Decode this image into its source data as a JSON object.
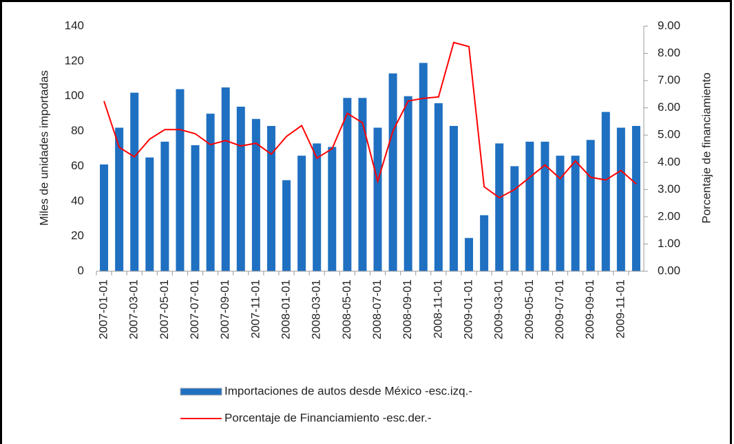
{
  "chart_data": {
    "type": "bar_line",
    "categories": [
      "2007-01-01",
      null,
      "2007-03-01",
      null,
      "2007-05-01",
      null,
      "2007-07-01",
      null,
      "2007-09-01",
      null,
      "2007-11-01",
      null,
      "2008-01-01",
      null,
      "2008-03-01",
      null,
      "2008-05-01",
      null,
      "2008-07-01",
      null,
      "2008-09-01",
      null,
      "2008-11-01",
      null,
      "2009-01-01",
      null,
      "2009-03-01",
      null,
      "2009-05-01",
      null,
      "2009-07-01",
      null,
      "2009-09-01",
      null,
      "2009-11-01",
      null
    ],
    "series": [
      {
        "name": "Importaciones de autos desde México -esc.izq.-",
        "type": "bar",
        "color": "#1f70c1",
        "values": [
          61,
          82,
          102,
          65,
          74,
          104,
          72,
          90,
          105,
          94,
          87,
          83,
          52,
          66,
          73,
          71,
          99,
          99,
          82,
          113,
          100,
          119,
          96,
          83,
          19,
          32,
          73,
          60,
          74,
          74,
          66,
          66,
          75,
          91,
          82,
          83
        ]
      },
      {
        "name": "Porcentaje de Financiamiento -esc.der.-",
        "type": "line",
        "axis": "y2",
        "color": "#ff0000",
        "values": [
          6.25,
          4.55,
          4.2,
          4.85,
          5.2,
          5.2,
          5.05,
          4.65,
          4.8,
          4.6,
          4.7,
          4.3,
          4.95,
          5.35,
          4.15,
          4.5,
          5.8,
          5.45,
          3.3,
          5.15,
          6.25,
          6.35,
          6.4,
          8.4,
          8.25,
          3.1,
          2.7,
          3.0,
          3.45,
          3.9,
          3.4,
          4.05,
          3.45,
          3.35,
          3.7,
          3.2
        ]
      }
    ],
    "ylabel": "Miles de unidades importadas",
    "y2label": "Porcentaje de financiamiento",
    "ylim": [
      0,
      140
    ],
    "yticks": [
      0,
      20,
      40,
      60,
      80,
      100,
      120,
      140
    ],
    "y2lim": [
      0,
      9
    ],
    "y2ticks": [
      {
        "value": 0,
        "label": "0.00"
      },
      {
        "value": 1,
        "label": "1.00"
      },
      {
        "value": 2,
        "label": "2.00"
      },
      {
        "value": 3,
        "label": "3.00"
      },
      {
        "value": 4,
        "label": "4.00"
      },
      {
        "value": 5,
        "label": "5.00"
      },
      {
        "value": 6,
        "label": "6.00"
      },
      {
        "value": 7,
        "label": "7.00"
      },
      {
        "value": 8,
        "label": "8.00"
      },
      {
        "value": 9,
        "label": "9.00"
      }
    ],
    "legend": "bottom"
  }
}
